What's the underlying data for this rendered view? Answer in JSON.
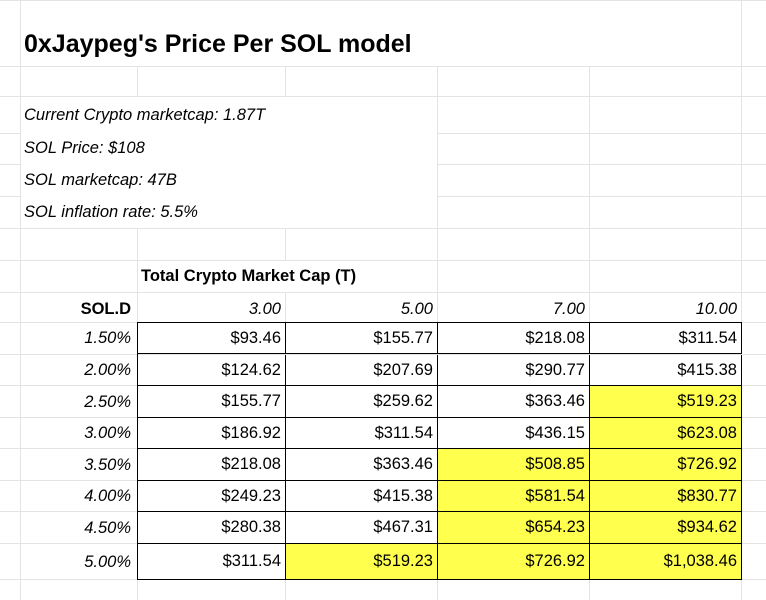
{
  "title": "0xJaypeg's Price Per SOL model",
  "info": {
    "line1": "Current Crypto marketcap: 1.87T",
    "line2": "SOL Price: $108",
    "line3": "SOL marketcap: 47B",
    "line4": "SOL inflation rate: 5.5%"
  },
  "table": {
    "group_header": "Total Crypto Market Cap (T)",
    "row_header": "SOL.D",
    "columns": [
      "3.00",
      "5.00",
      "7.00",
      "10.00"
    ],
    "rows": [
      {
        "label": "1.50%",
        "cells": [
          "$93.46",
          "$155.77",
          "$218.08",
          "$311.54"
        ],
        "highlight": [
          false,
          false,
          false,
          false
        ]
      },
      {
        "label": "2.00%",
        "cells": [
          "$124.62",
          "$207.69",
          "$290.77",
          "$415.38"
        ],
        "highlight": [
          false,
          false,
          false,
          false
        ]
      },
      {
        "label": "2.50%",
        "cells": [
          "$155.77",
          "$259.62",
          "$363.46",
          "$519.23"
        ],
        "highlight": [
          false,
          false,
          false,
          true
        ]
      },
      {
        "label": "3.00%",
        "cells": [
          "$186.92",
          "$311.54",
          "$436.15",
          "$623.08"
        ],
        "highlight": [
          false,
          false,
          false,
          true
        ]
      },
      {
        "label": "3.50%",
        "cells": [
          "$218.08",
          "$363.46",
          "$508.85",
          "$726.92"
        ],
        "highlight": [
          false,
          false,
          true,
          true
        ]
      },
      {
        "label": "4.00%",
        "cells": [
          "$249.23",
          "$415.38",
          "$581.54",
          "$830.77"
        ],
        "highlight": [
          false,
          false,
          true,
          true
        ]
      },
      {
        "label": "4.50%",
        "cells": [
          "$280.38",
          "$467.31",
          "$654.23",
          "$934.62"
        ],
        "highlight": [
          false,
          false,
          true,
          true
        ]
      },
      {
        "label": "5.00%",
        "cells": [
          "$311.54",
          "$519.23",
          "$726.92",
          "$1,038.46"
        ],
        "highlight": [
          false,
          true,
          true,
          true
        ]
      }
    ]
  },
  "colors": {
    "highlight": "#ffff4d",
    "gridline": "#e2e3e3"
  }
}
